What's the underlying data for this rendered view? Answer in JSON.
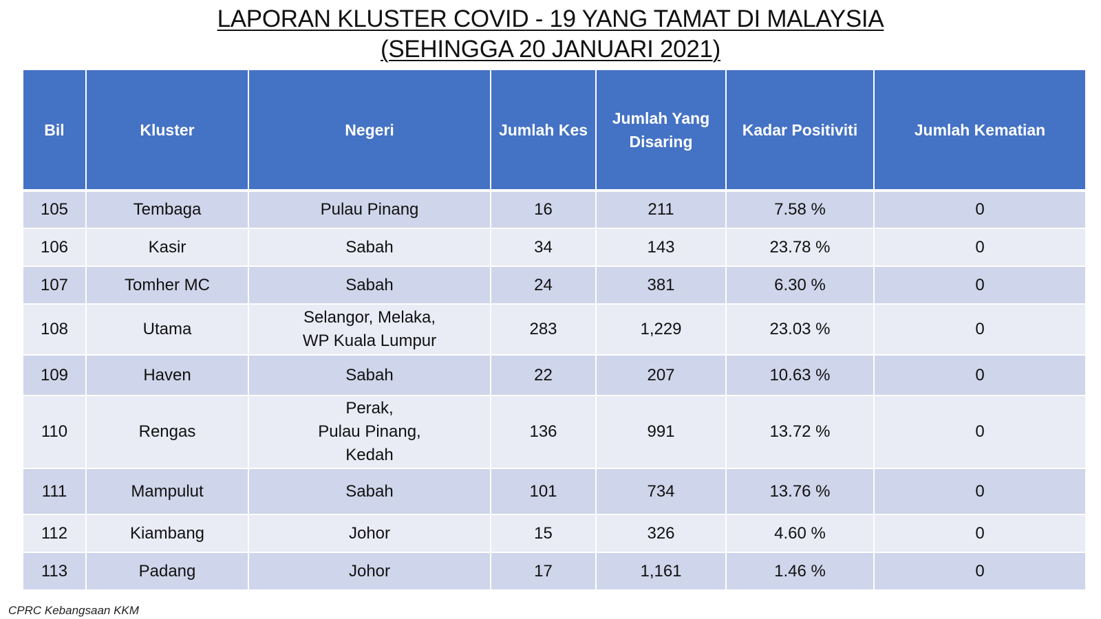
{
  "title": {
    "line1": "LAPORAN KLUSTER COVID - 19 YANG TAMAT DI MALAYSIA",
    "line2": "(SEHINGGA 20 JANUARI 2021)"
  },
  "table": {
    "headers": [
      "Bil",
      "Kluster",
      "Negeri",
      "Jumlah Kes",
      "Jumlah Yang Disaring",
      "Kadar Positiviti",
      "Jumlah Kematian"
    ],
    "rows": [
      {
        "bil": "105",
        "kluster": "Tembaga",
        "negeri": [
          "Pulau Pinang"
        ],
        "kes": "16",
        "disaring": "211",
        "positiviti": "7.58 %",
        "kematian": "0"
      },
      {
        "bil": "106",
        "kluster": "Kasir",
        "negeri": [
          "Sabah"
        ],
        "kes": "34",
        "disaring": "143",
        "positiviti": "23.78 %",
        "kematian": "0"
      },
      {
        "bil": "107",
        "kluster": "Tomher MC",
        "negeri": [
          "Sabah"
        ],
        "kes": "24",
        "disaring": "381",
        "positiviti": "6.30 %",
        "kematian": "0"
      },
      {
        "bil": "108",
        "kluster": "Utama",
        "negeri": [
          "Selangor, Melaka,",
          "WP Kuala Lumpur"
        ],
        "kes": "283",
        "disaring": "1,229",
        "positiviti": "23.03 %",
        "kematian": "0"
      },
      {
        "bil": "109",
        "kluster": "Haven",
        "negeri": [
          "Sabah"
        ],
        "kes": "22",
        "disaring": "207",
        "positiviti": "10.63 %",
        "kematian": "0"
      },
      {
        "bil": "110",
        "kluster": "Rengas",
        "negeri": [
          "Perak,",
          "Pulau Pinang,",
          "Kedah"
        ],
        "kes": "136",
        "disaring": "991",
        "positiviti": "13.72 %",
        "kematian": "0"
      },
      {
        "bil": "111",
        "kluster": "Mampulut",
        "negeri": [
          "Sabah"
        ],
        "kes": "101",
        "disaring": "734",
        "positiviti": "13.76 %",
        "kematian": "0"
      },
      {
        "bil": "112",
        "kluster": "Kiambang",
        "negeri": [
          "Johor"
        ],
        "kes": "15",
        "disaring": "326",
        "positiviti": "4.60 %",
        "kematian": "0"
      },
      {
        "bil": "113",
        "kluster": "Padang",
        "negeri": [
          "Johor"
        ],
        "kes": "17",
        "disaring": "1,161",
        "positiviti": "1.46 %",
        "kematian": "0"
      }
    ]
  },
  "source": "CPRC Kebangsaan KKM",
  "colors": {
    "header_bg": "#4472c4",
    "row_dark": "#cfd5ea",
    "row_light": "#e9ebf5"
  }
}
